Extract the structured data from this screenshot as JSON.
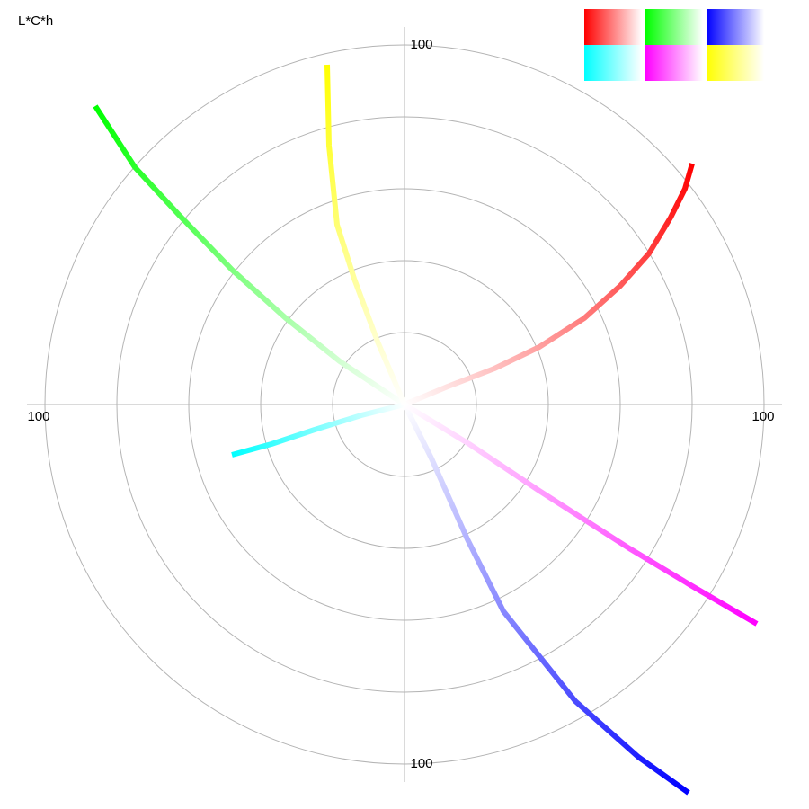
{
  "chart_data": {
    "type": "polar-path",
    "title": "L*C*h",
    "rlim": [
      0,
      100
    ],
    "rticks": [
      20,
      40,
      60,
      80,
      100
    ],
    "series": [
      {
        "color": "#ff0000",
        "x": [
          0,
          12,
          25,
          37.5,
          50,
          60,
          68,
          74,
          78,
          80
        ],
        "y": [
          0,
          5,
          10,
          16,
          24,
          33,
          42,
          52,
          60,
          67
        ]
      },
      {
        "color": "#00ff00",
        "x": [
          0,
          -18,
          -33,
          -48,
          -62.5,
          -75,
          -86
        ],
        "y": [
          0,
          12,
          24,
          37.5,
          52.5,
          66,
          83
        ]
      },
      {
        "color": "#0000ff",
        "x": [
          0,
          7.5,
          17.5,
          27.5,
          47.5,
          65,
          79
        ],
        "y": [
          0,
          -15,
          -37.5,
          -57.5,
          -82.5,
          -98,
          -108
        ]
      },
      {
        "color": "#00ffff",
        "x": [
          0,
          -12,
          -25,
          -37,
          -48
        ],
        "y": [
          0,
          -3,
          -7,
          -11,
          -14
        ]
      },
      {
        "color": "#ff00ff",
        "x": [
          0,
          18,
          37.5,
          62.5,
          80,
          98
        ],
        "y": [
          0,
          -11,
          -24,
          -40,
          -50.5,
          -61
        ]
      },
      {
        "color": "#ffff00",
        "x": [
          0,
          -7.5,
          -14,
          -18.75,
          -21,
          -21.5
        ],
        "y": [
          0,
          17.5,
          35,
          50,
          72,
          94.5
        ]
      }
    ]
  }
}
